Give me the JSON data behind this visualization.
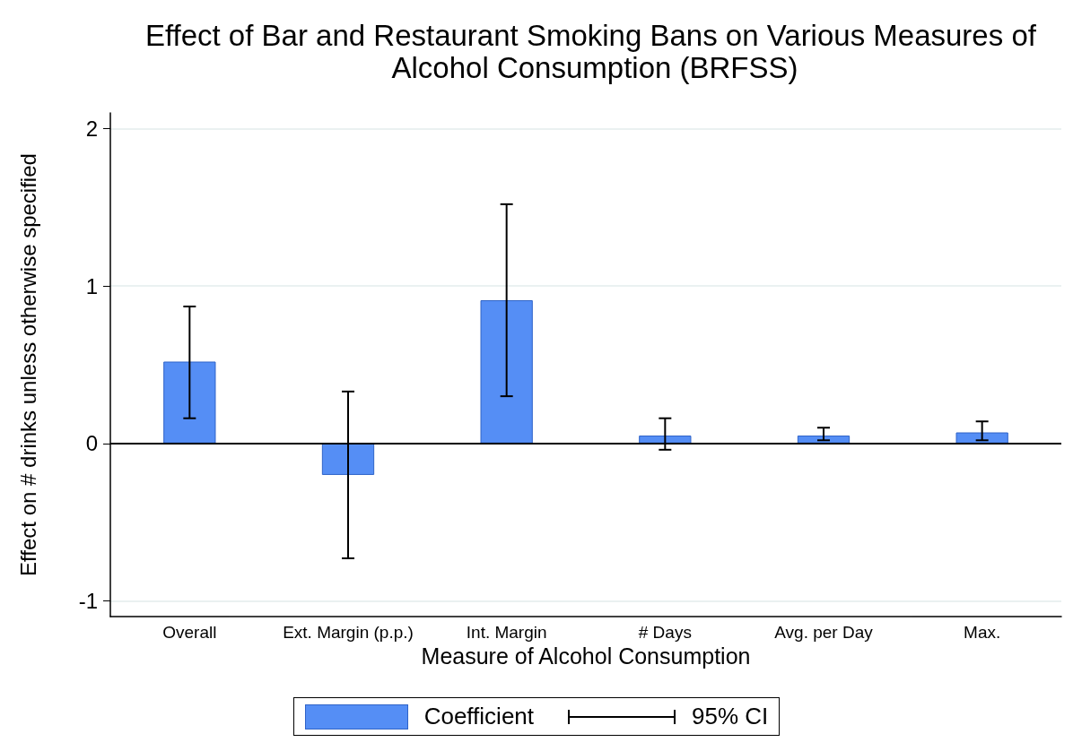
{
  "chart_data": {
    "type": "bar",
    "title": "Effect of Bar and Restaurant Smoking Bans on Various Measures of Alcohol Consumption (BRFSS)",
    "xlabel": "Measure of Alcohol Consumption",
    "ylabel": "Effect on # drinks unless otherwise specified",
    "categories": [
      "Overall",
      "Ext. Margin (p.p.)",
      "Int. Margin",
      "# Days",
      "Avg. per Day",
      "Max."
    ],
    "series": [
      {
        "name": "Coefficient",
        "color": "#558ef5",
        "values": [
          0.52,
          -0.2,
          0.91,
          0.05,
          0.05,
          0.07
        ],
        "errors": [
          [
            0.16,
            0.87
          ],
          [
            -0.73,
            0.33
          ],
          [
            0.3,
            1.52
          ],
          [
            -0.04,
            0.16
          ],
          [
            0.02,
            0.1
          ],
          [
            0.02,
            0.14
          ]
        ]
      }
    ],
    "annotations": [
      "95% CI"
    ],
    "ylim": [
      -1.1,
      2.1
    ],
    "yticks": [
      -1,
      0,
      1,
      2
    ],
    "grid": "y",
    "legend": "bottom",
    "ref_lines": [
      {
        "axis": "y",
        "value": 0,
        "color": "#000000"
      }
    ]
  }
}
